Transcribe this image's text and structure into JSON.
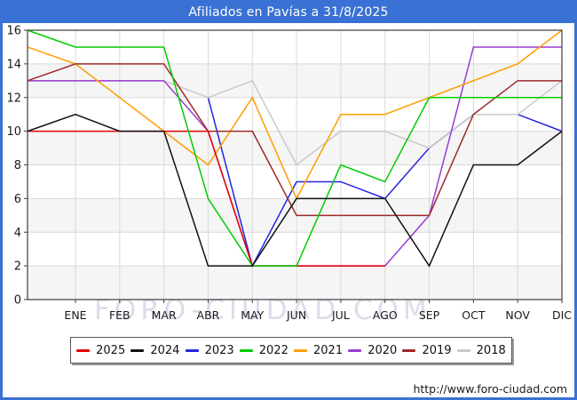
{
  "frame": {
    "watermark": "FORO-CIUDAD.COM",
    "footer_url": "http://www.foro-ciudad.com"
  },
  "chart_data": {
    "type": "line",
    "title": "Afiliados en Pavías a 31/8/2025",
    "xlabel": "",
    "ylabel": "",
    "categories": [
      "ENE",
      "FEB",
      "MAR",
      "ABR",
      "MAY",
      "JUN",
      "JUL",
      "AGO",
      "SEP",
      "OCT",
      "NOV",
      "DIC"
    ],
    "y_ticks": [
      0,
      2,
      4,
      6,
      8,
      10,
      12,
      14,
      16
    ],
    "ylim": [
      0,
      16
    ],
    "grid": true,
    "legend_position": "bottom",
    "series": [
      {
        "name": "2025",
        "color": "#e60000",
        "start": 10,
        "values": [
          10,
          10,
          10,
          10,
          2,
          2,
          2,
          2,
          null,
          null,
          null,
          null
        ]
      },
      {
        "name": "2024",
        "color": "#111111",
        "start": 10,
        "values": [
          11,
          10,
          10,
          2,
          2,
          6,
          6,
          6,
          2,
          8,
          8,
          10
        ]
      },
      {
        "name": "2023",
        "color": "#2424dd",
        "start": null,
        "values": [
          null,
          null,
          null,
          12,
          2,
          7,
          7,
          6,
          9,
          11,
          11,
          10
        ]
      },
      {
        "name": "2022",
        "color": "#00cc00",
        "start": 16,
        "values": [
          15,
          15,
          15,
          6,
          2,
          2,
          8,
          7,
          12,
          12,
          12,
          12
        ]
      },
      {
        "name": "2021",
        "color": "#ff9d00",
        "start": 15,
        "values": [
          14,
          12,
          10,
          8,
          12,
          6,
          11,
          11,
          12,
          13,
          14,
          16
        ]
      },
      {
        "name": "2020",
        "color": "#9a3ad6",
        "start": 13,
        "values": [
          13,
          13,
          13,
          10,
          2,
          2,
          2,
          2,
          5,
          15,
          15,
          15
        ]
      },
      {
        "name": "2019",
        "color": "#9e2a2a",
        "start": 13,
        "values": [
          14,
          14,
          14,
          10,
          10,
          5,
          5,
          5,
          5,
          11,
          13,
          13
        ]
      },
      {
        "name": "2018",
        "color": "#c9c9c9",
        "start": 13,
        "values": [
          13,
          13,
          13,
          12,
          13,
          8,
          10,
          10,
          9,
          11,
          11,
          13
        ]
      }
    ],
    "draw_order": [
      "2023",
      "2018",
      "2020",
      "2021",
      "2019",
      "2025",
      "2022",
      "2024"
    ]
  },
  "legend": {
    "items": [
      {
        "label": "2025",
        "color": "#e60000"
      },
      {
        "label": "2024",
        "color": "#111111"
      },
      {
        "label": "2023",
        "color": "#2424dd"
      },
      {
        "label": "2022",
        "color": "#00cc00"
      },
      {
        "label": "2021",
        "color": "#ff9d00"
      },
      {
        "label": "2020",
        "color": "#9a3ad6"
      },
      {
        "label": "2019",
        "color": "#9e2a2a"
      },
      {
        "label": "2018",
        "color": "#c9c9c9"
      }
    ]
  }
}
